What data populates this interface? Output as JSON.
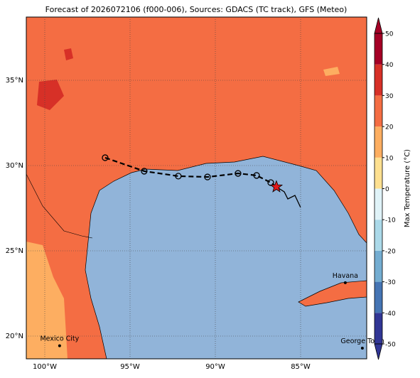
{
  "map": {
    "title": "Forecast of 2026072106 (f000-006), Sources: GDACS (TC track), GFS (Meteo)",
    "xticks": [
      {
        "value": -100,
        "label": "100°W"
      },
      {
        "value": -95,
        "label": "95°W"
      },
      {
        "value": -90,
        "label": "90°W"
      },
      {
        "value": -85,
        "label": "85°W"
      }
    ],
    "yticks": [
      {
        "value": 20,
        "label": "20°N"
      },
      {
        "value": 25,
        "label": "25°N"
      },
      {
        "value": 30,
        "label": "30°N"
      },
      {
        "value": 35,
        "label": "35°N"
      }
    ],
    "colorbar": {
      "label": "Max Temperature (°C)",
      "ticks": [
        -50,
        -40,
        -30,
        -20,
        -10,
        0,
        10,
        20,
        30,
        40,
        50
      ],
      "colors": [
        "#313695",
        "#4575b4",
        "#74add1",
        "#abd9e9",
        "#e0f3f8",
        "#fee090",
        "#fdae61",
        "#f46d43",
        "#d73027",
        "#a50026"
      ]
    },
    "places": [
      {
        "name": "Mexico City",
        "lon": -99.13,
        "lat": 19.43
      },
      {
        "name": "Havana",
        "lon": -82.38,
        "lat": 23.13
      },
      {
        "name": "George Town",
        "lon": -81.38,
        "lat": 19.29
      }
    ],
    "track": {
      "lon": [
        -96.46,
        -94.17,
        -92.17,
        -90.46,
        -88.67,
        -87.58,
        -86.75
      ],
      "lat": [
        30.46,
        29.67,
        29.38,
        29.33,
        29.54,
        29.42,
        29.0
      ]
    },
    "storm_position": {
      "lon": -86.42,
      "lat": 28.75
    }
  }
}
